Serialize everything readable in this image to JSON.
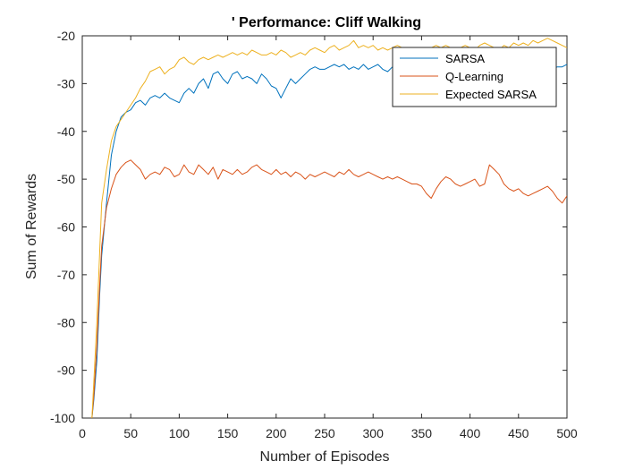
{
  "chart_data": {
    "type": "line",
    "title": "' Performance: Cliff Walking",
    "xlabel": "Number of Episodes",
    "ylabel": "Sum of Rewards",
    "xlim": [
      0,
      500
    ],
    "ylim": [
      -100,
      -20
    ],
    "xticks": [
      0,
      50,
      100,
      150,
      200,
      250,
      300,
      350,
      400,
      450,
      500
    ],
    "yticks": [
      -100,
      -90,
      -80,
      -70,
      -60,
      -50,
      -40,
      -30,
      -20
    ],
    "legend_position": "top-right",
    "grid": false,
    "series": [
      {
        "name": "SARSA",
        "color": "#0072BD",
        "x": [
          10,
          12,
          15,
          18,
          20,
          25,
          30,
          35,
          40,
          45,
          50,
          55,
          60,
          65,
          70,
          75,
          80,
          85,
          90,
          95,
          100,
          105,
          110,
          115,
          120,
          125,
          130,
          135,
          140,
          145,
          150,
          155,
          160,
          165,
          170,
          175,
          180,
          185,
          190,
          195,
          200,
          205,
          210,
          215,
          220,
          225,
          230,
          235,
          240,
          245,
          250,
          255,
          260,
          265,
          270,
          275,
          280,
          285,
          290,
          295,
          300,
          305,
          310,
          315,
          320,
          325,
          330,
          335,
          340,
          345,
          350,
          355,
          360,
          365,
          370,
          375,
          380,
          385,
          390,
          395,
          400,
          405,
          410,
          415,
          420,
          425,
          430,
          435,
          440,
          445,
          450,
          455,
          460,
          465,
          470,
          475,
          480,
          485,
          490,
          495,
          500
        ],
        "values": [
          -100,
          -96,
          -88,
          -74,
          -66,
          -55,
          -45,
          -40,
          -37,
          -36,
          -35.5,
          -34,
          -33.5,
          -34.5,
          -33,
          -32.5,
          -33,
          -32,
          -33,
          -33.5,
          -34,
          -32,
          -31,
          -32,
          -30,
          -29,
          -31,
          -28,
          -27.5,
          -29,
          -30,
          -28,
          -27.5,
          -29,
          -28.5,
          -29,
          -30,
          -28,
          -29,
          -30.5,
          -31,
          -33,
          -31,
          -29,
          -30,
          -29,
          -28,
          -27,
          -26.5,
          -27,
          -27,
          -26.5,
          -26,
          -26.5,
          -26,
          -27,
          -26.5,
          -27,
          -26,
          -27,
          -26.5,
          -26,
          -27,
          -27.5,
          -26.5,
          -26,
          -27,
          -26,
          -26.5,
          -26,
          -27,
          -26.5,
          -26.5,
          -27,
          -26.5,
          -27,
          -26,
          -27,
          -26.5,
          -26,
          -25.5,
          -26.5,
          -27,
          -26,
          -27.5,
          -28,
          -27,
          -26.5,
          -27.5,
          -26.5,
          -27.5,
          -28,
          -27.5,
          -27,
          -28,
          -27,
          -26.5,
          -27,
          -26.5,
          -26.5,
          -26
        ]
      },
      {
        "name": "Q-Learning",
        "color": "#D95319",
        "x": [
          10,
          12,
          15,
          18,
          20,
          25,
          30,
          35,
          40,
          45,
          50,
          55,
          60,
          65,
          70,
          75,
          80,
          85,
          90,
          95,
          100,
          105,
          110,
          115,
          120,
          125,
          130,
          135,
          140,
          145,
          150,
          155,
          160,
          165,
          170,
          175,
          180,
          185,
          190,
          195,
          200,
          205,
          210,
          215,
          220,
          225,
          230,
          235,
          240,
          245,
          250,
          255,
          260,
          265,
          270,
          275,
          280,
          285,
          290,
          295,
          300,
          305,
          310,
          315,
          320,
          325,
          330,
          335,
          340,
          345,
          350,
          355,
          360,
          365,
          370,
          375,
          380,
          385,
          390,
          395,
          400,
          405,
          410,
          415,
          420,
          425,
          430,
          435,
          440,
          445,
          450,
          455,
          460,
          465,
          470,
          475,
          480,
          485,
          490,
          495,
          500
        ],
        "values": [
          -100,
          -95,
          -85,
          -72,
          -64,
          -56,
          -52,
          -49,
          -47.5,
          -46.5,
          -46,
          -47,
          -48,
          -50,
          -49,
          -48.5,
          -49,
          -47.5,
          -48,
          -49.5,
          -49,
          -47,
          -48.5,
          -49,
          -47,
          -48,
          -49,
          -47.5,
          -50,
          -48,
          -48.5,
          -49,
          -48,
          -49,
          -48.5,
          -47.5,
          -47,
          -48,
          -48.5,
          -49,
          -48,
          -49,
          -48.5,
          -49.5,
          -48.5,
          -49,
          -50,
          -49,
          -49.5,
          -49,
          -48.5,
          -49,
          -49.5,
          -48.5,
          -49,
          -48,
          -49,
          -49.5,
          -49,
          -48.5,
          -49,
          -49.5,
          -50,
          -49.5,
          -50,
          -49.5,
          -50,
          -50.5,
          -51,
          -51,
          -51.5,
          -53,
          -54,
          -52,
          -50.5,
          -49.5,
          -50,
          -51,
          -51.5,
          -51,
          -50.5,
          -50,
          -51.5,
          -51,
          -47,
          -48,
          -49,
          -51,
          -52,
          -52.5,
          -52,
          -53,
          -53.5,
          -53,
          -52.5,
          -52,
          -51.5,
          -52.5,
          -54,
          -55,
          -53.5
        ]
      },
      {
        "name": "Expected SARSA",
        "color": "#EDB120",
        "x": [
          10,
          12,
          15,
          18,
          20,
          25,
          30,
          35,
          40,
          45,
          50,
          55,
          60,
          65,
          70,
          75,
          80,
          85,
          90,
          95,
          100,
          105,
          110,
          115,
          120,
          125,
          130,
          135,
          140,
          145,
          150,
          155,
          160,
          165,
          170,
          175,
          180,
          185,
          190,
          195,
          200,
          205,
          210,
          215,
          220,
          225,
          230,
          235,
          240,
          245,
          250,
          255,
          260,
          265,
          270,
          275,
          280,
          285,
          290,
          295,
          300,
          305,
          310,
          315,
          320,
          325,
          330,
          335,
          340,
          345,
          350,
          355,
          360,
          365,
          370,
          375,
          380,
          385,
          390,
          395,
          400,
          405,
          410,
          415,
          420,
          425,
          430,
          435,
          440,
          445,
          450,
          455,
          460,
          465,
          470,
          475,
          480,
          485,
          490,
          495,
          500
        ],
        "values": [
          -100,
          -92,
          -80,
          -65,
          -55,
          -48,
          -42,
          -39,
          -37.5,
          -36,
          -34.5,
          -33,
          -31,
          -29.5,
          -27.5,
          -27,
          -26.5,
          -28,
          -27,
          -26.5,
          -25,
          -24.5,
          -25.5,
          -26,
          -25,
          -24.5,
          -25,
          -24.5,
          -24,
          -24.5,
          -24,
          -23.5,
          -24,
          -23.5,
          -24,
          -23,
          -23.5,
          -24,
          -24,
          -23.5,
          -24,
          -23,
          -23.5,
          -24.5,
          -24,
          -23.5,
          -24,
          -23,
          -22.5,
          -23,
          -23.5,
          -22.5,
          -22,
          -23,
          -22.5,
          -22,
          -21,
          -22.5,
          -22,
          -22.5,
          -22,
          -23,
          -22.5,
          -23,
          -22.5,
          -22,
          -22.5,
          -23,
          -22.5,
          -23,
          -22.5,
          -23,
          -22.5,
          -22,
          -22.5,
          -22,
          -22.5,
          -23,
          -22.5,
          -22,
          -22.5,
          -23,
          -22,
          -21.5,
          -22,
          -22.5,
          -23,
          -22,
          -22.5,
          -21.5,
          -22,
          -21.5,
          -22,
          -21,
          -21.5,
          -21,
          -20.5,
          -21,
          -21.5,
          -22,
          -22.5
        ]
      }
    ]
  }
}
